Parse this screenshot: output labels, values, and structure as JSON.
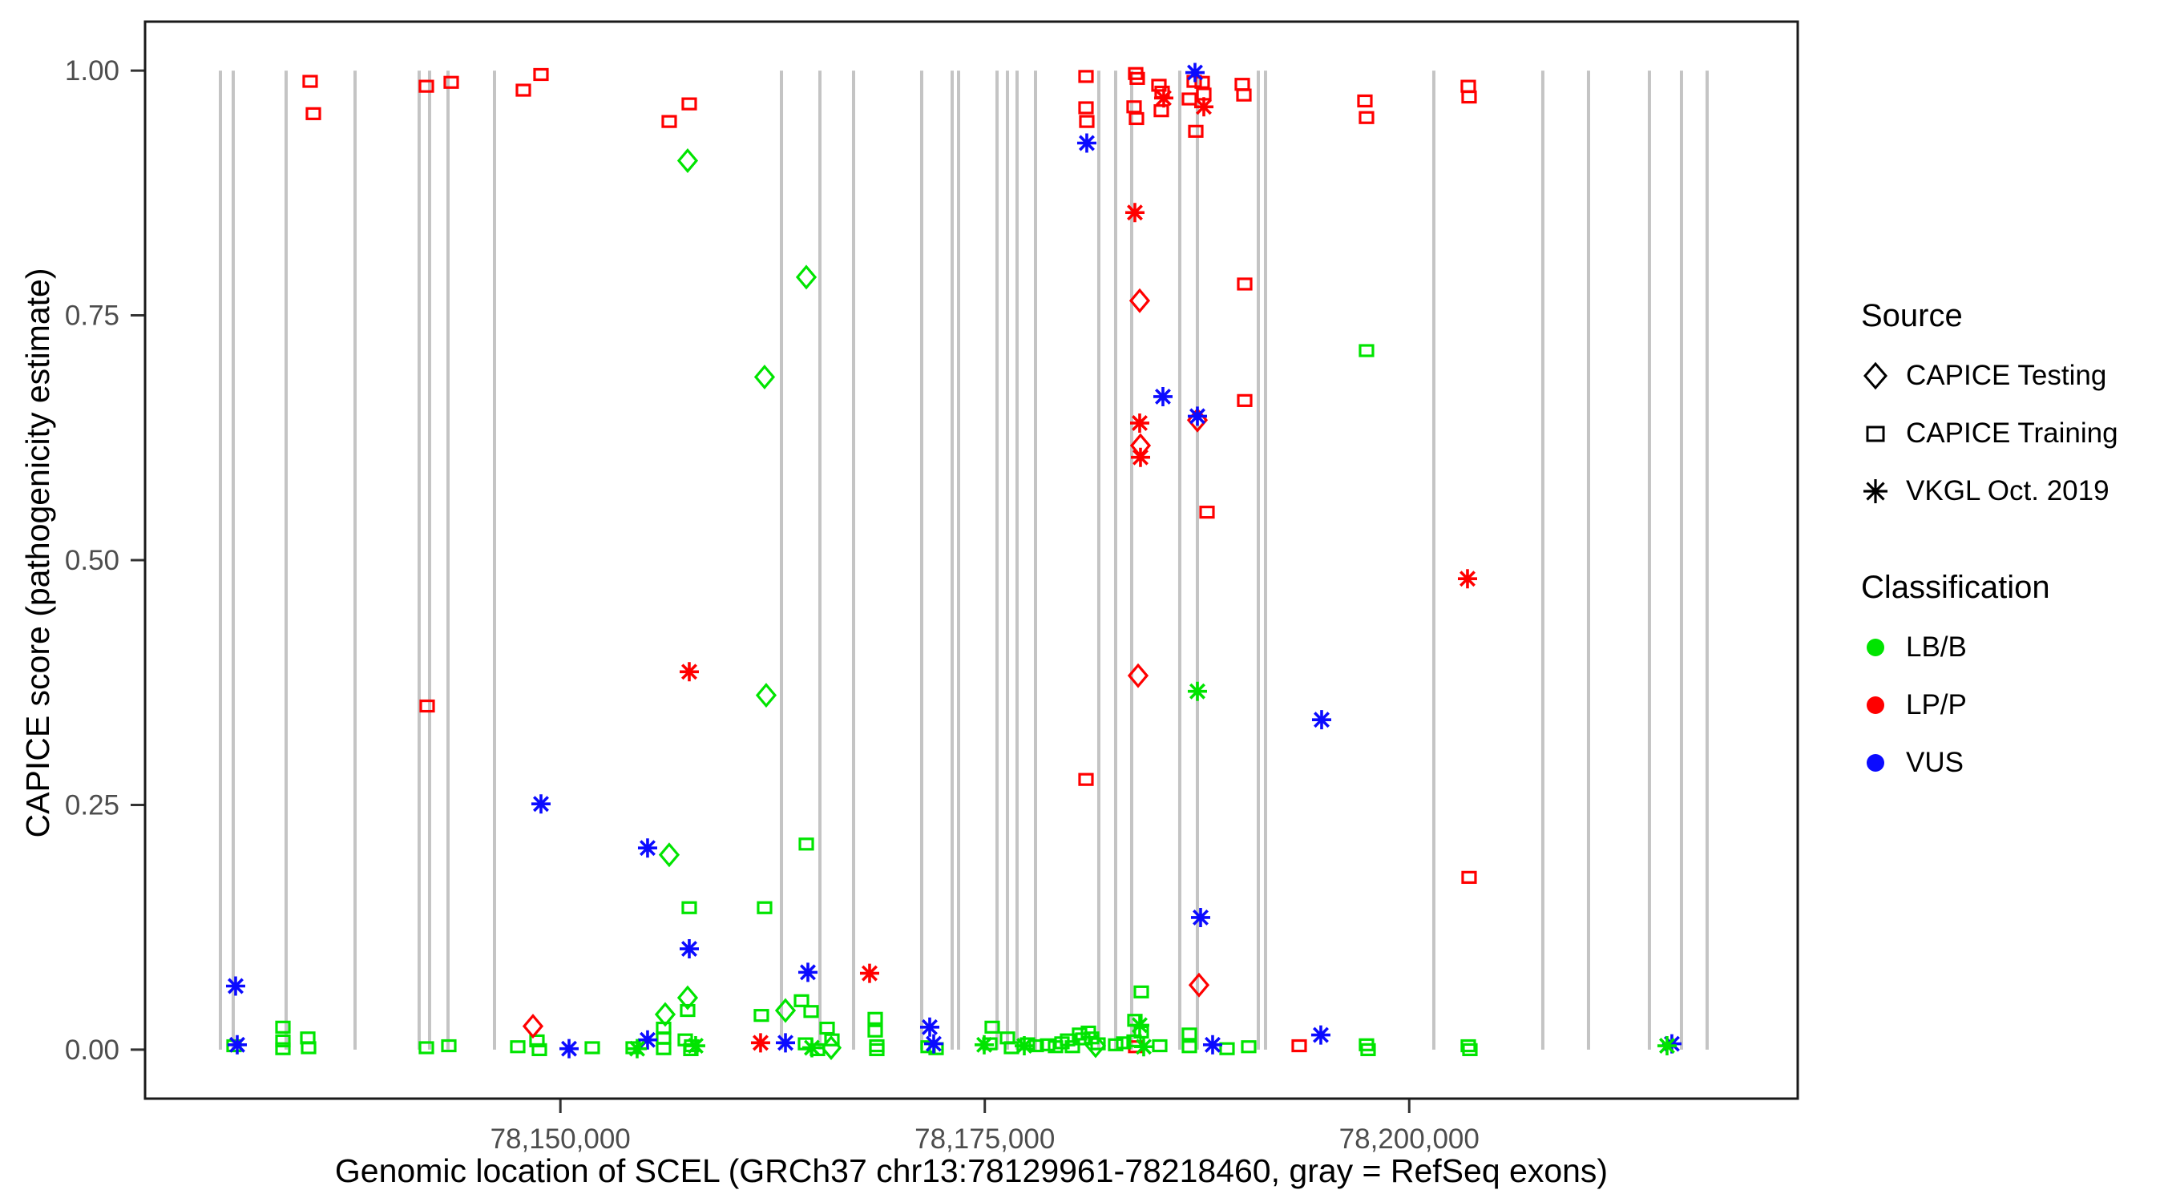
{
  "figure": {
    "xlabel": "Genomic location of SCEL (GRCh37 chr13:78129961-78218460, gray = RefSeq exons)",
    "ylabel": "CAPICE score (pathogenicity estimate)"
  },
  "legend": {
    "source_title": "Source",
    "source_items": [
      {
        "label": "CAPICE Testing",
        "shape": "diamond"
      },
      {
        "label": "CAPICE Training",
        "shape": "square"
      },
      {
        "label": "VKGL Oct. 2019",
        "shape": "asterisk"
      }
    ],
    "classification_title": "Classification",
    "classification_items": [
      {
        "label": "LB/B",
        "color": "#00E400"
      },
      {
        "label": "LP/P",
        "color": "#FF0000"
      },
      {
        "label": "VUS",
        "color": "#0B0BFF"
      }
    ]
  },
  "chart_data": {
    "type": "scatter",
    "title": "",
    "xlabel": "Genomic location of SCEL (GRCh37 chr13:78129961-78218460, gray = RefSeq exons)",
    "ylabel": "CAPICE score (pathogenicity estimate)",
    "x_axis": {
      "domain": [
        78125536,
        78222885
      ],
      "ticks": [
        {
          "value": 78150000,
          "label": "78,150,000"
        },
        {
          "value": 78175000,
          "label": "78,175,000"
        },
        {
          "value": 78200000,
          "label": "78,200,000"
        }
      ]
    },
    "y_axis": {
      "domain": [
        -0.05,
        1.05
      ],
      "ticks": [
        {
          "value": 0.0,
          "label": "0.00"
        },
        {
          "value": 0.25,
          "label": "0.25"
        },
        {
          "value": 0.5,
          "label": "0.50"
        },
        {
          "value": 0.75,
          "label": "0.75"
        },
        {
          "value": 1.0,
          "label": "1.00"
        }
      ]
    },
    "grid": false,
    "legend_position": "right",
    "colors": {
      "LB/B": "#00E400",
      "LP/P": "#FF0000",
      "VUS": "#0B0BFF"
    },
    "shape_by_source": {
      "test": "diamond",
      "train": "square",
      "vkgl": "asterisk"
    },
    "source_labels": {
      "test": "CAPICE Testing",
      "train": "CAPICE Training",
      "vkgl": "VKGL Oct. 2019"
    },
    "exon_color": "#C4C4C4",
    "exons": [
      78129974,
      78130729,
      78133845,
      78137905,
      78141681,
      78142295,
      78143381,
      78146119,
      78163022,
      78165288,
      78167270,
      78171283,
      78173077,
      78173455,
      78175721,
      78176334,
      78176901,
      78177987,
      78181716,
      78182708,
      78183652,
      78186485,
      78187523,
      78191111,
      78191536,
      78201450,
      78207870,
      78210561,
      78214149,
      78216037,
      78217548
    ],
    "points": [
      [
        78135260,
        0.989,
        "train",
        "LP/P"
      ],
      [
        78135450,
        0.956,
        "train",
        "LP/P"
      ],
      [
        78142107,
        0.984,
        "train",
        "LP/P"
      ],
      [
        78143570,
        0.988,
        "train",
        "LP/P"
      ],
      [
        78142154,
        0.351,
        "train",
        "LP/P"
      ],
      [
        78147819,
        0.98,
        "train",
        "LP/P"
      ],
      [
        78148857,
        0.996,
        "train",
        "LP/P"
      ],
      [
        78156411,
        0.948,
        "train",
        "LP/P"
      ],
      [
        78157591,
        0.966,
        "train",
        "LP/P"
      ],
      [
        78180961,
        0.276,
        "train",
        "LP/P"
      ],
      [
        78180961,
        0.994,
        "train",
        "LP/P"
      ],
      [
        78180961,
        0.962,
        "train",
        "LP/P"
      ],
      [
        78181008,
        0.948,
        "train",
        "LP/P"
      ],
      [
        78183793,
        0.963,
        "train",
        "LP/P"
      ],
      [
        78183935,
        0.951,
        "train",
        "LP/P"
      ],
      [
        78183888,
        0.997,
        "train",
        "LP/P"
      ],
      [
        78183982,
        0.992,
        "train",
        "LP/P"
      ],
      [
        78183888,
        0.003,
        "train",
        "LP/P"
      ],
      [
        78185257,
        0.985,
        "train",
        "LP/P"
      ],
      [
        78185446,
        0.978,
        "train",
        "LP/P"
      ],
      [
        78185398,
        0.959,
        "train",
        "LP/P"
      ],
      [
        78187051,
        0.971,
        "train",
        "LP/P"
      ],
      [
        78187334,
        0.989,
        "train",
        "LP/P"
      ],
      [
        78187806,
        0.988,
        "train",
        "LP/P"
      ],
      [
        78187901,
        0.976,
        "train",
        "LP/P"
      ],
      [
        78187429,
        0.938,
        "train",
        "LP/P"
      ],
      [
        78190167,
        0.986,
        "train",
        "LP/P"
      ],
      [
        78190262,
        0.975,
        "train",
        "LP/P"
      ],
      [
        78188090,
        0.549,
        "train",
        "LP/P"
      ],
      [
        78190309,
        0.782,
        "train",
        "LP/P"
      ],
      [
        78190309,
        0.663,
        "train",
        "LP/P"
      ],
      [
        78197390,
        0.969,
        "train",
        "LP/P"
      ],
      [
        78197484,
        0.952,
        "train",
        "LP/P"
      ],
      [
        78203480,
        0.984,
        "train",
        "LP/P"
      ],
      [
        78203527,
        0.973,
        "train",
        "LP/P"
      ],
      [
        78203527,
        0.176,
        "train",
        "LP/P"
      ],
      [
        78193519,
        0.004,
        "train",
        "LP/P"
      ],
      [
        78130776,
        0.004,
        "train",
        "LB/B"
      ],
      [
        78133656,
        0.023,
        "train",
        "LB/B"
      ],
      [
        78133656,
        0.009,
        "train",
        "LB/B"
      ],
      [
        78133656,
        0.001,
        "train",
        "LB/B"
      ],
      [
        78135120,
        0.012,
        "train",
        "LB/B"
      ],
      [
        78135167,
        0.002,
        "train",
        "LB/B"
      ],
      [
        78142107,
        0.002,
        "train",
        "LB/B"
      ],
      [
        78143428,
        0.004,
        "train",
        "LB/B"
      ],
      [
        78147488,
        0.003,
        "train",
        "LB/B"
      ],
      [
        78148621,
        0.009,
        "train",
        "LB/B"
      ],
      [
        78148763,
        0.0,
        "train",
        "LB/B"
      ],
      [
        78151879,
        0.002,
        "train",
        "LB/B"
      ],
      [
        78154286,
        0.002,
        "train",
        "LB/B"
      ],
      [
        78156080,
        0.022,
        "train",
        "LB/B"
      ],
      [
        78156080,
        0.012,
        "train",
        "LB/B"
      ],
      [
        78156080,
        0.001,
        "train",
        "LB/B"
      ],
      [
        78157496,
        0.04,
        "train",
        "LB/B"
      ],
      [
        78157355,
        0.01,
        "train",
        "LB/B"
      ],
      [
        78157732,
        0.004,
        "train",
        "LB/B"
      ],
      [
        78157685,
        0.0,
        "train",
        "LB/B"
      ],
      [
        78157591,
        0.145,
        "train",
        "LB/B"
      ],
      [
        78161839,
        0.035,
        "train",
        "LB/B"
      ],
      [
        78162028,
        0.145,
        "train",
        "LB/B"
      ],
      [
        78164202,
        0.05,
        "train",
        "LB/B"
      ],
      [
        78164769,
        0.039,
        "train",
        "LB/B"
      ],
      [
        78165713,
        0.022,
        "train",
        "LB/B"
      ],
      [
        78164438,
        0.006,
        "train",
        "LB/B"
      ],
      [
        78165146,
        0.0,
        "train",
        "LB/B"
      ],
      [
        78165996,
        0.01,
        "train",
        "LB/B"
      ],
      [
        78164486,
        0.21,
        "train",
        "LB/B"
      ],
      [
        78168545,
        0.032,
        "train",
        "LB/B"
      ],
      [
        78168545,
        0.019,
        "train",
        "LB/B"
      ],
      [
        78168639,
        0.004,
        "train",
        "LB/B"
      ],
      [
        78168639,
        0.0,
        "train",
        "LB/B"
      ],
      [
        78171660,
        0.003,
        "train",
        "LB/B"
      ],
      [
        78172132,
        0.001,
        "train",
        "LB/B"
      ],
      [
        78175296,
        0.006,
        "train",
        "LB/B"
      ],
      [
        78175437,
        0.023,
        "train",
        "LB/B"
      ],
      [
        78176334,
        0.012,
        "train",
        "LB/B"
      ],
      [
        78176570,
        0.002,
        "train",
        "LB/B"
      ],
      [
        78177515,
        0.006,
        "train",
        "LB/B"
      ],
      [
        78178034,
        0.004,
        "train",
        "LB/B"
      ],
      [
        78178695,
        0.005,
        "train",
        "LB/B"
      ],
      [
        78179167,
        0.003,
        "train",
        "LB/B"
      ],
      [
        78179545,
        0.007,
        "train",
        "LB/B"
      ],
      [
        78179875,
        0.01,
        "train",
        "LB/B"
      ],
      [
        78180159,
        0.003,
        "train",
        "LB/B"
      ],
      [
        78180583,
        0.016,
        "train",
        "LB/B"
      ],
      [
        78180772,
        0.011,
        "train",
        "LB/B"
      ],
      [
        78181103,
        0.018,
        "train",
        "LB/B"
      ],
      [
        78181291,
        0.012,
        "train",
        "LB/B"
      ],
      [
        78181669,
        0.006,
        "train",
        "LB/B"
      ],
      [
        78182708,
        0.005,
        "train",
        "LB/B"
      ],
      [
        78183180,
        0.007,
        "train",
        "LB/B"
      ],
      [
        78183841,
        0.03,
        "train",
        "LB/B"
      ],
      [
        78184218,
        0.018,
        "train",
        "LB/B"
      ],
      [
        78183793,
        0.009,
        "train",
        "LB/B"
      ],
      [
        78184218,
        0.059,
        "train",
        "LB/B"
      ],
      [
        78185304,
        0.004,
        "train",
        "LB/B"
      ],
      [
        78187051,
        0.016,
        "train",
        "LB/B"
      ],
      [
        78187051,
        0.003,
        "train",
        "LB/B"
      ],
      [
        78189270,
        0.001,
        "train",
        "LB/B"
      ],
      [
        78190545,
        0.003,
        "train",
        "LB/B"
      ],
      [
        78197484,
        0.714,
        "train",
        "LB/B"
      ],
      [
        78197484,
        0.005,
        "train",
        "LB/B"
      ],
      [
        78197579,
        0.0,
        "train",
        "LB/B"
      ],
      [
        78203480,
        0.004,
        "train",
        "LB/B"
      ],
      [
        78203575,
        0.0,
        "train",
        "LB/B"
      ],
      [
        78157496,
        0.908,
        "test",
        "LB/B"
      ],
      [
        78162028,
        0.687,
        "test",
        "LB/B"
      ],
      [
        78164486,
        0.789,
        "test",
        "LB/B"
      ],
      [
        78162123,
        0.362,
        "test",
        "LB/B"
      ],
      [
        78156411,
        0.199,
        "test",
        "LB/B"
      ],
      [
        78156175,
        0.036,
        "test",
        "LB/B"
      ],
      [
        78157496,
        0.053,
        "test",
        "LB/B"
      ],
      [
        78163258,
        0.04,
        "test",
        "LB/B"
      ],
      [
        78165949,
        0.002,
        "test",
        "LB/B"
      ],
      [
        78181527,
        0.004,
        "test",
        "LB/B"
      ],
      [
        78148385,
        0.024,
        "test",
        "LP/P"
      ],
      [
        78184030,
        0.382,
        "test",
        "LP/P"
      ],
      [
        78184124,
        0.765,
        "test",
        "LP/P"
      ],
      [
        78184171,
        0.617,
        "test",
        "LP/P"
      ],
      [
        78187523,
        0.643,
        "test",
        "LP/P"
      ],
      [
        78187618,
        0.066,
        "test",
        "LP/P"
      ],
      [
        78130870,
        0.065,
        "vkgl",
        "VUS"
      ],
      [
        78130965,
        0.005,
        "vkgl",
        "VUS"
      ],
      [
        78150510,
        0.001,
        "vkgl",
        "VUS"
      ],
      [
        78148857,
        0.251,
        "vkgl",
        "VUS"
      ],
      [
        78155136,
        0.206,
        "vkgl",
        "VUS"
      ],
      [
        78155136,
        0.01,
        "vkgl",
        "VUS"
      ],
      [
        78157591,
        0.103,
        "vkgl",
        "VUS"
      ],
      [
        78163258,
        0.007,
        "vkgl",
        "VUS"
      ],
      [
        78164580,
        0.079,
        "vkgl",
        "VUS"
      ],
      [
        78171755,
        0.023,
        "vkgl",
        "VUS"
      ],
      [
        78171991,
        0.006,
        "vkgl",
        "VUS"
      ],
      [
        78181008,
        0.926,
        "vkgl",
        "VUS"
      ],
      [
        78185493,
        0.667,
        "vkgl",
        "VUS"
      ],
      [
        78187382,
        0.998,
        "vkgl",
        "VUS"
      ],
      [
        78187523,
        0.647,
        "vkgl",
        "VUS"
      ],
      [
        78187712,
        0.135,
        "vkgl",
        "VUS"
      ],
      [
        78188420,
        0.005,
        "vkgl",
        "VUS"
      ],
      [
        78194841,
        0.337,
        "vkgl",
        "VUS"
      ],
      [
        78194793,
        0.015,
        "vkgl",
        "VUS"
      ],
      [
        78215471,
        0.006,
        "vkgl",
        "VUS"
      ],
      [
        78161792,
        0.007,
        "vkgl",
        "LP/P"
      ],
      [
        78168214,
        0.078,
        "vkgl",
        "LP/P"
      ],
      [
        78157591,
        0.386,
        "vkgl",
        "LP/P"
      ],
      [
        78183841,
        0.855,
        "vkgl",
        "LP/P"
      ],
      [
        78184124,
        0.64,
        "vkgl",
        "LP/P"
      ],
      [
        78184171,
        0.605,
        "vkgl",
        "LP/P"
      ],
      [
        78185540,
        0.972,
        "vkgl",
        "LP/P"
      ],
      [
        78187901,
        0.963,
        "vkgl",
        "LP/P"
      ],
      [
        78203433,
        0.481,
        "vkgl",
        "LP/P"
      ],
      [
        78154522,
        0.001,
        "vkgl",
        "LB/B"
      ],
      [
        78157968,
        0.004,
        "vkgl",
        "LB/B"
      ],
      [
        78164816,
        0.002,
        "vkgl",
        "LB/B"
      ],
      [
        78174965,
        0.005,
        "vkgl",
        "LB/B"
      ],
      [
        78177326,
        0.004,
        "vkgl",
        "LB/B"
      ],
      [
        78184124,
        0.025,
        "vkgl",
        "LB/B"
      ],
      [
        78184360,
        0.003,
        "vkgl",
        "LB/B"
      ],
      [
        78187523,
        0.366,
        "vkgl",
        "LB/B"
      ],
      [
        78215187,
        0.004,
        "vkgl",
        "LB/B"
      ]
    ]
  }
}
